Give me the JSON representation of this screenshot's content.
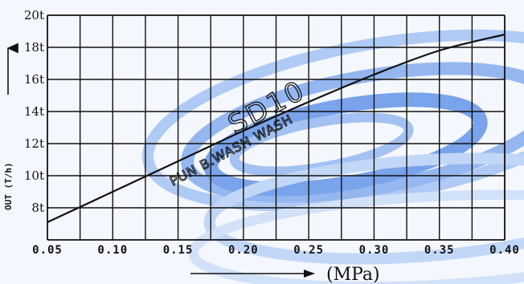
{
  "chart_data": {
    "type": "line",
    "xlabel": "(MPa)",
    "ylabel": "OUT (T/h)",
    "x_ticks": [
      "0.05",
      "0.10",
      "0.15",
      "0.20",
      "0.25",
      "0.30",
      "0.35",
      "0.40"
    ],
    "y_ticks": [
      "8t",
      "10t",
      "12t",
      "14t",
      "16t",
      "18t",
      "20t"
    ],
    "xlim": [
      0.05,
      0.4
    ],
    "ylim": [
      6,
      20
    ],
    "grid": true,
    "series": [
      {
        "name": "SD10",
        "x": [
          0.05,
          0.1,
          0.15,
          0.2,
          0.25,
          0.3,
          0.35,
          0.4
        ],
        "y": [
          7.1,
          9.0,
          10.9,
          12.8,
          14.6,
          16.3,
          17.8,
          18.8
        ]
      }
    ],
    "annotations": [
      "SD10",
      "PUN B.WASH WASH"
    ]
  },
  "colors": {
    "line": "#111111",
    "grid": "#111111",
    "background": "#f4f7fd",
    "swirl": "#5b8fe6"
  }
}
